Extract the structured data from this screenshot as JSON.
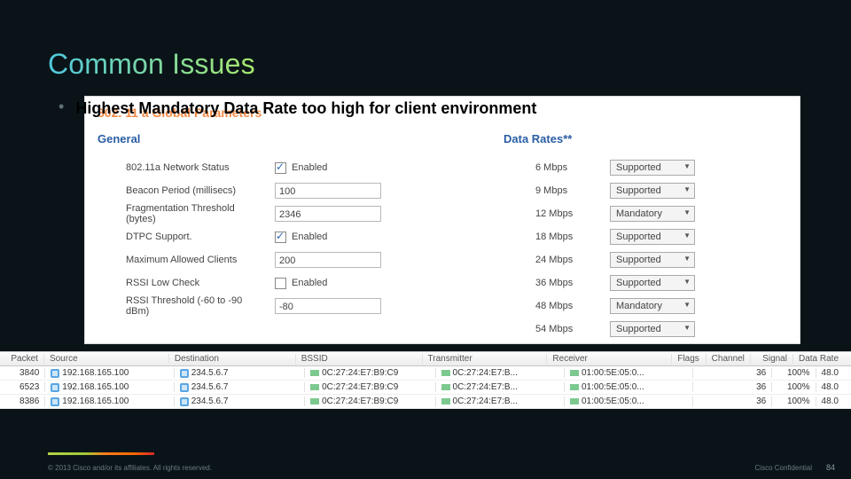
{
  "slide": {
    "title": "Common Issues",
    "bullet": "Highest Mandatory Data Rate too high for client environment"
  },
  "panel": {
    "heading": "802. 11 a Global Parameters",
    "general_label": "General",
    "rates_label": "Data Rates**",
    "general": [
      {
        "label": "802.11a Network Status",
        "type": "check",
        "checked": true,
        "text": "Enabled"
      },
      {
        "label": "Beacon Period (millisecs)",
        "type": "text",
        "value": "100"
      },
      {
        "label": "Fragmentation Threshold (bytes)",
        "type": "text",
        "value": "2346"
      },
      {
        "label": "DTPC Support.",
        "type": "check",
        "checked": true,
        "text": "Enabled"
      },
      {
        "label": "Maximum Allowed Clients",
        "type": "text",
        "value": "200"
      },
      {
        "label": "RSSI Low Check",
        "type": "check",
        "checked": false,
        "text": "Enabled"
      },
      {
        "label": "RSSI Threshold (-60 to -90 dBm)",
        "type": "text",
        "value": "-80"
      }
    ],
    "rates": [
      {
        "label": "6 Mbps",
        "value": "Supported"
      },
      {
        "label": "9 Mbps",
        "value": "Supported"
      },
      {
        "label": "12 Mbps",
        "value": "Mandatory"
      },
      {
        "label": "18 Mbps",
        "value": "Supported"
      },
      {
        "label": "24 Mbps",
        "value": "Supported"
      },
      {
        "label": "36 Mbps",
        "value": "Supported"
      },
      {
        "label": "48 Mbps",
        "value": "Mandatory"
      },
      {
        "label": "54 Mbps",
        "value": "Supported"
      }
    ]
  },
  "capture": {
    "columns": [
      "Packet",
      "Source",
      "Destination",
      "BSSID",
      "Transmitter",
      "Receiver",
      "Flags",
      "Channel",
      "Signal",
      "Data Rate"
    ],
    "rows": [
      {
        "packet": "3840",
        "source": "192.168.165.100",
        "dest": "234.5.6.7",
        "bssid": "0C:27:24:E7:B9:C9",
        "tx": "0C:27:24:E7:B...",
        "rx": "01:00:5E:05:0...",
        "flags": "",
        "chan": "36",
        "sig": "100%",
        "rate": "48.0"
      },
      {
        "packet": "6523",
        "source": "192.168.165.100",
        "dest": "234.5.6.7",
        "bssid": "0C:27:24:E7:B9:C9",
        "tx": "0C:27:24:E7:B...",
        "rx": "01:00:5E:05:0...",
        "flags": "",
        "chan": "36",
        "sig": "100%",
        "rate": "48.0"
      },
      {
        "packet": "8386",
        "source": "192.168.165.100",
        "dest": "234.5.6.7",
        "bssid": "0C:27:24:E7:B9:C9",
        "tx": "0C:27:24:E7:B...",
        "rx": "01:00:5E:05:0...",
        "flags": "",
        "chan": "36",
        "sig": "100%",
        "rate": "48.0"
      }
    ]
  },
  "footer": {
    "copyright": "© 2013 Cisco and/or its affiliates. All rights reserved.",
    "confidential": "Cisco Confidential",
    "page": "84"
  },
  "styling": {
    "title_gradient": [
      "#4fc8de",
      "#a8e86c"
    ],
    "panel_heading_color": "#f38a46",
    "subhead_color": "#2a5ea4",
    "footer_stripe": [
      "#b4d445",
      "#a0c938",
      "#ff7b1c",
      "#ff6a00",
      "#d82a2a"
    ],
    "background": "#0a1418"
  }
}
